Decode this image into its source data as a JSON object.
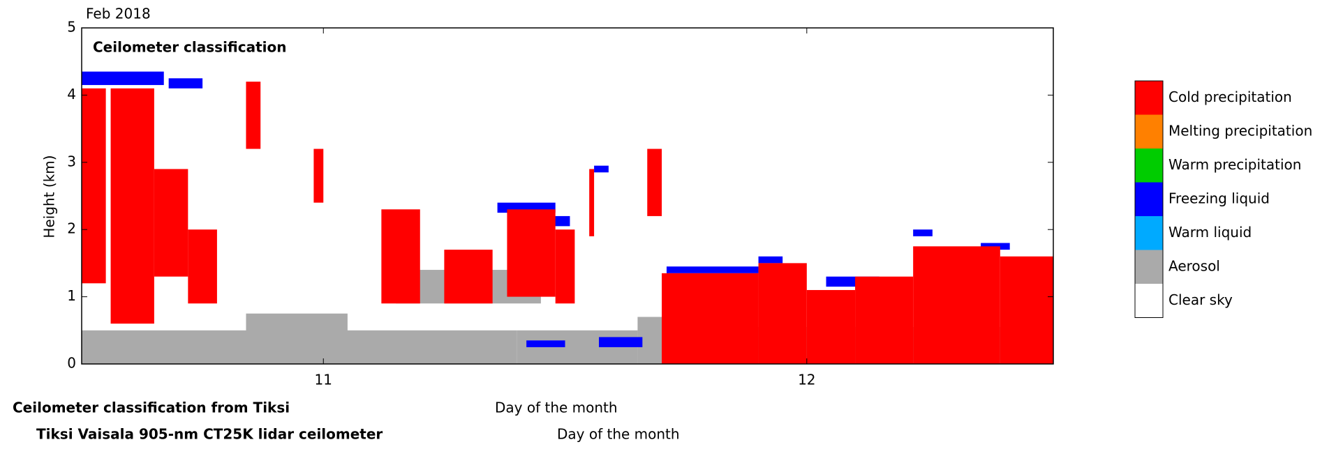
{
  "chart_data": {
    "type": "classification",
    "title": "Ceilometer classification",
    "date_label": "Feb 2018",
    "ylabel": "Height (km)",
    "xlabels": [
      "Day of the month",
      "Day of the month"
    ],
    "footer_lines": [
      "Ceilometer classification from Tiksi",
      "Tiksi Vaisala 905-nm CT25K lidar ceilometer"
    ],
    "xlim": [
      10.5,
      12.51
    ],
    "xticks": [
      11,
      12
    ],
    "ylim": [
      0,
      5
    ],
    "yticks": [
      0,
      1,
      2,
      3,
      4,
      5
    ],
    "series": [
      {
        "name": "Cold precipitation",
        "color": "#ff0000",
        "regions": [
          [
            10.5,
            10.55,
            1.2,
            4.1
          ],
          [
            10.56,
            10.65,
            0.6,
            4.1
          ],
          [
            10.65,
            10.72,
            1.3,
            2.9
          ],
          [
            10.72,
            10.78,
            0.9,
            2.0
          ],
          [
            10.84,
            10.87,
            3.2,
            4.2
          ],
          [
            10.98,
            11.0,
            2.4,
            3.2
          ],
          [
            11.12,
            11.2,
            0.9,
            2.3
          ],
          [
            11.25,
            11.35,
            0.9,
            1.7
          ],
          [
            11.38,
            11.48,
            1.0,
            2.3
          ],
          [
            11.48,
            11.52,
            0.9,
            2.0
          ],
          [
            11.55,
            11.56,
            1.9,
            2.9
          ],
          [
            11.67,
            11.7,
            2.2,
            3.2
          ],
          [
            11.7,
            11.9,
            0,
            1.35
          ],
          [
            11.9,
            12.0,
            0,
            1.5
          ],
          [
            12.0,
            12.1,
            0,
            1.1
          ],
          [
            12.1,
            12.22,
            0,
            1.3
          ],
          [
            12.22,
            12.4,
            0,
            1.75
          ],
          [
            12.4,
            12.51,
            0,
            1.6
          ]
        ]
      },
      {
        "name": "Melting precipitation",
        "color": "#ff8000",
        "regions": []
      },
      {
        "name": "Warm precipitation",
        "color": "#00cc00",
        "regions": []
      },
      {
        "name": "Freezing liquid",
        "color": "#0000ff",
        "regions": [
          [
            10.5,
            10.67,
            4.15,
            4.35
          ],
          [
            10.68,
            10.75,
            4.1,
            4.25
          ],
          [
            11.36,
            11.48,
            2.25,
            2.4
          ],
          [
            11.47,
            11.51,
            2.05,
            2.2
          ],
          [
            11.56,
            11.59,
            2.85,
            2.95
          ],
          [
            11.71,
            11.9,
            1.35,
            1.45
          ],
          [
            11.9,
            11.95,
            1.5,
            1.6
          ],
          [
            12.04,
            12.15,
            1.15,
            1.3
          ],
          [
            12.22,
            12.26,
            1.9,
            2.0
          ],
          [
            12.26,
            12.3,
            1.55,
            1.65
          ],
          [
            12.36,
            12.42,
            1.7,
            1.8
          ],
          [
            11.42,
            11.5,
            0.25,
            0.35
          ],
          [
            11.57,
            11.66,
            0.25,
            0.4
          ]
        ]
      },
      {
        "name": "Warm liquid",
        "color": "#00aaff",
        "regions": []
      },
      {
        "name": "Aerosol",
        "color": "#aaaaaa",
        "regions": [
          [
            10.5,
            11.4,
            0,
            0.5
          ],
          [
            10.84,
            11.05,
            0.4,
            0.75
          ],
          [
            11.15,
            11.45,
            0.9,
            1.4
          ],
          [
            11.4,
            11.65,
            0,
            0.5
          ],
          [
            11.65,
            11.75,
            0,
            0.7
          ],
          [
            11.8,
            12.51,
            0,
            0.55
          ]
        ]
      },
      {
        "name": "Clear sky",
        "color": "#ffffff",
        "regions": []
      }
    ]
  }
}
